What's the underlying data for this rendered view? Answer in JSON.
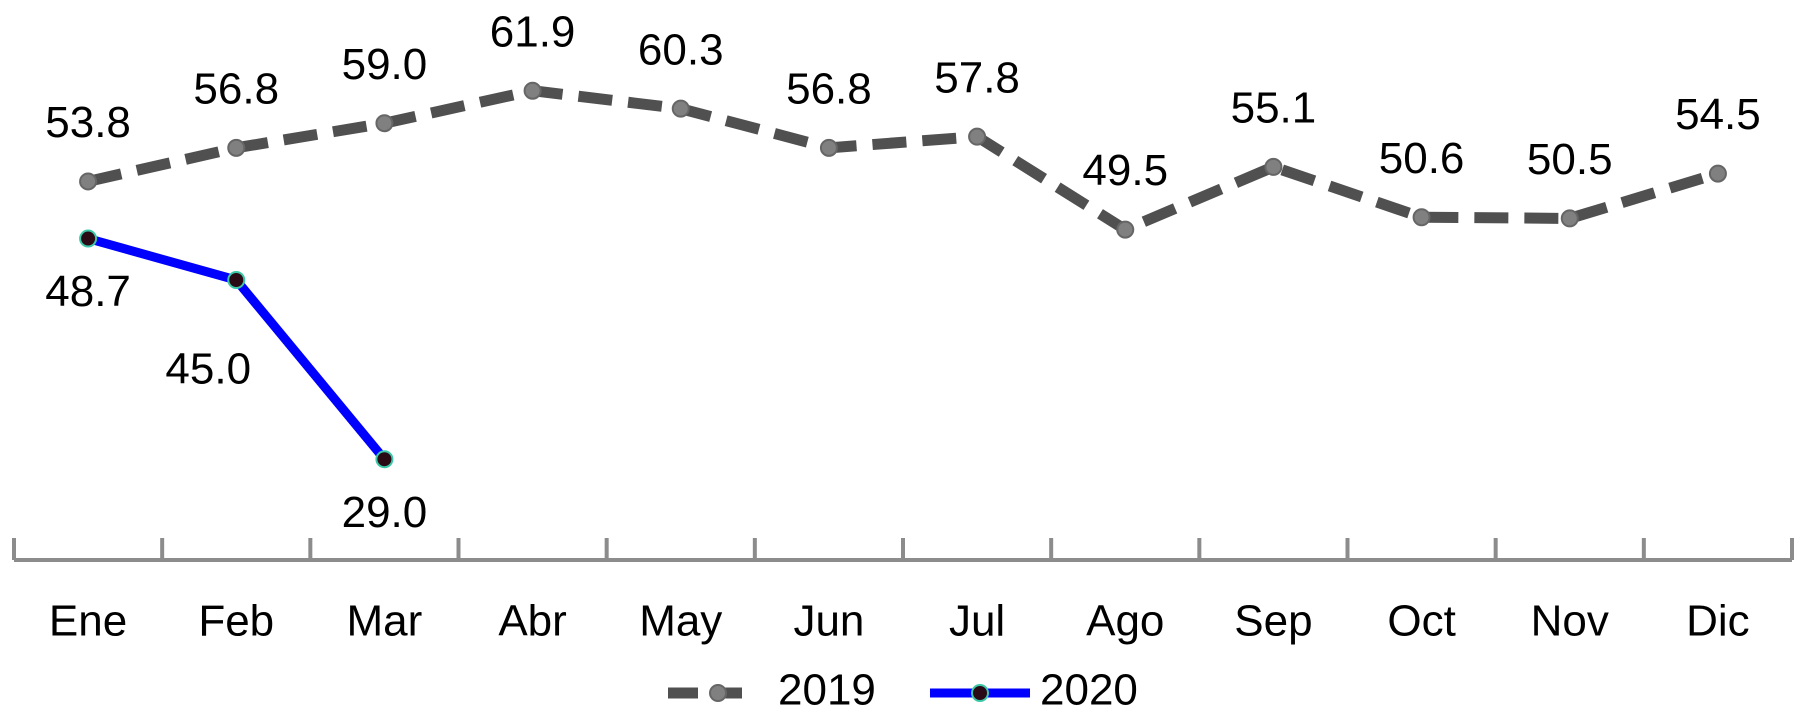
{
  "chart_data": {
    "type": "line",
    "categories": [
      "Ene",
      "Feb",
      "Mar",
      "Abr",
      "May",
      "Jun",
      "Jul",
      "Ago",
      "Sep",
      "Oct",
      "Nov",
      "Dic"
    ],
    "series": [
      {
        "name": "2019",
        "color": "#505050",
        "marker_color": "#808080",
        "line_style": "dashed",
        "values": [
          53.8,
          56.8,
          59.0,
          61.9,
          60.3,
          56.8,
          57.8,
          49.5,
          55.1,
          50.6,
          50.5,
          54.5
        ],
        "value_labels": [
          "53.8",
          "56.8",
          "59.0",
          "61.9",
          "60.3",
          "56.8",
          "57.8",
          "49.5",
          "55.1",
          "50.6",
          "50.5",
          "54.5"
        ],
        "label_position": "above"
      },
      {
        "name": "2020",
        "color": "#0000ff",
        "marker_color": "#2a0a14",
        "line_style": "solid",
        "values": [
          48.7,
          45.0,
          29.0,
          null,
          null,
          null,
          null,
          null,
          null,
          null,
          null,
          null
        ],
        "value_labels": [
          "48.7",
          "45.0",
          "29.0",
          null,
          null,
          null,
          null,
          null,
          null,
          null,
          null,
          null
        ],
        "label_position": "below"
      }
    ],
    "ylim": [
      20,
      70
    ],
    "legend": "bottom"
  }
}
